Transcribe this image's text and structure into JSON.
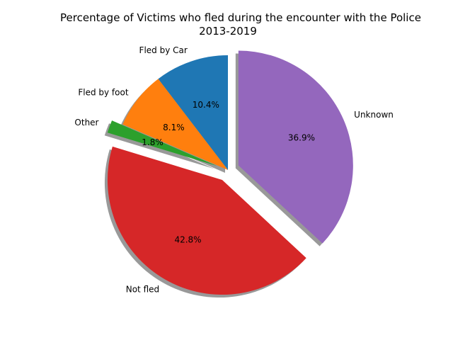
{
  "chart_data": {
    "type": "pie",
    "title": "Percentage of Victims who fled during the encounter with the Police",
    "subtitle": "2013-2019",
    "slices": [
      {
        "label": "Fled by Car",
        "value": 10.4,
        "pct_label": "10.4%",
        "color": "#1f77b4",
        "exploded": false
      },
      {
        "label": "Fled by foot",
        "value": 8.1,
        "pct_label": "8.1%",
        "color": "#ff7f0e",
        "exploded": false
      },
      {
        "label": "Other",
        "value": 1.8,
        "pct_label": "1.8%",
        "color": "#2ca02c",
        "exploded": true
      },
      {
        "label": "Not fled",
        "value": 42.8,
        "pct_label": "42.8%",
        "color": "#d62728",
        "exploded": true
      },
      {
        "label": "Unknown",
        "value": 36.9,
        "pct_label": "36.9%",
        "color": "#9467bd",
        "exploded": true
      }
    ],
    "start_angle": 90,
    "direction": "counterclockwise",
    "shadow": true
  }
}
